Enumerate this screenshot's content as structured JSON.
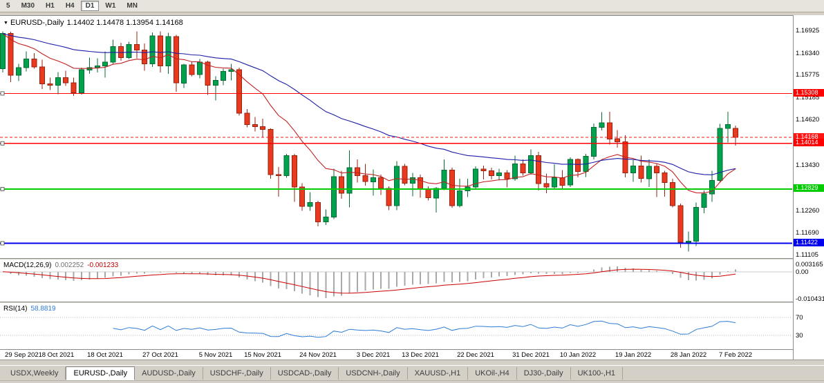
{
  "icons": {
    "chart_marker": "▼"
  },
  "toolbar": {
    "timeframes": [
      "5",
      "M30",
      "H1",
      "H4",
      "D1",
      "W1",
      "MN"
    ],
    "active": "D1"
  },
  "chart_data": {
    "type": "candlestick",
    "title": "EURUSD-,Daily",
    "symbol": "EURUSD-",
    "timeframe": "Daily",
    "ohlc_readout": "1.14402 1.14478 1.13954 1.14168",
    "price_scale": {
      "top": 1.1732,
      "bottom": 1.1102
    },
    "colors": {
      "up": {
        "fill": "#00a24d",
        "stroke": "#056b32"
      },
      "down": {
        "fill": "#e9391f",
        "stroke": "#97220f"
      },
      "ma_fast": "#c22020",
      "ma_slow": "#1c1ca8",
      "macd_hist": "#a8a8a8",
      "macd_signal": "#cc0000",
      "rsi_line": "#2c7cd6"
    },
    "candles": [
      [
        1.1595,
        1.1692,
        1.1585,
        1.1686
      ],
      [
        1.1686,
        1.1691,
        1.156,
        1.1578
      ],
      [
        1.1578,
        1.1608,
        1.1563,
        1.1598
      ],
      [
        1.1598,
        1.164,
        1.1588,
        1.162
      ],
      [
        1.162,
        1.1635,
        1.1595,
        1.16
      ],
      [
        1.16,
        1.1618,
        1.1542,
        1.1556
      ],
      [
        1.1556,
        1.1572,
        1.154,
        1.1552
      ],
      [
        1.1552,
        1.1586,
        1.1529,
        1.1572
      ],
      [
        1.1572,
        1.159,
        1.155,
        1.1558
      ],
      [
        1.1558,
        1.1572,
        1.1524,
        1.1532
      ],
      [
        1.1532,
        1.1598,
        1.1528,
        1.1592
      ],
      [
        1.1592,
        1.1624,
        1.1582,
        1.1598
      ],
      [
        1.1598,
        1.1622,
        1.1585,
        1.1602
      ],
      [
        1.1602,
        1.164,
        1.1572,
        1.1612
      ],
      [
        1.1612,
        1.167,
        1.1608,
        1.1652
      ],
      [
        1.1652,
        1.1662,
        1.1616,
        1.1624
      ],
      [
        1.1624,
        1.1665,
        1.162,
        1.1658
      ],
      [
        1.1658,
        1.1692,
        1.1622,
        1.1643
      ],
      [
        1.1643,
        1.166,
        1.159,
        1.1608
      ],
      [
        1.1608,
        1.1689,
        1.16,
        1.168
      ],
      [
        1.168,
        1.1692,
        1.1585,
        1.1602
      ],
      [
        1.1602,
        1.1688,
        1.1582,
        1.1678
      ],
      [
        1.1678,
        1.1683,
        1.1535,
        1.1558
      ],
      [
        1.1558,
        1.1608,
        1.1545,
        1.1605
      ],
      [
        1.1605,
        1.1612,
        1.1575,
        1.158
      ],
      [
        1.158,
        1.162,
        1.157,
        1.1612
      ],
      [
        1.1612,
        1.1616,
        1.1527,
        1.1552
      ],
      [
        1.1552,
        1.1575,
        1.1513,
        1.1565
      ],
      [
        1.1565,
        1.1595,
        1.1552,
        1.1588
      ],
      [
        1.1588,
        1.1608,
        1.1565,
        1.1592
      ],
      [
        1.1592,
        1.1598,
        1.1473,
        1.148
      ],
      [
        1.148,
        1.149,
        1.1443,
        1.145
      ],
      [
        1.145,
        1.147,
        1.1432,
        1.1445
      ],
      [
        1.1445,
        1.1465,
        1.1418,
        1.1438
      ],
      [
        1.1438,
        1.144,
        1.131,
        1.132
      ],
      [
        1.132,
        1.134,
        1.1263,
        1.1318
      ],
      [
        1.1318,
        1.1374,
        1.1312,
        1.137
      ],
      [
        1.137,
        1.1374,
        1.125,
        1.1288
      ],
      [
        1.1288,
        1.1298,
        1.1226,
        1.1238
      ],
      [
        1.1238,
        1.1275,
        1.1226,
        1.1248
      ],
      [
        1.1248,
        1.1252,
        1.1186,
        1.1198
      ],
      [
        1.1198,
        1.123,
        1.119,
        1.121
      ],
      [
        1.121,
        1.1336,
        1.1205,
        1.1315
      ],
      [
        1.1315,
        1.133,
        1.1258,
        1.1272
      ],
      [
        1.1272,
        1.1383,
        1.1235,
        1.1338
      ],
      [
        1.1338,
        1.136,
        1.13,
        1.1318
      ],
      [
        1.1318,
        1.1348,
        1.1292,
        1.1302
      ],
      [
        1.1302,
        1.1334,
        1.1266,
        1.1312
      ],
      [
        1.1312,
        1.132,
        1.1268,
        1.1285
      ],
      [
        1.1285,
        1.129,
        1.1228,
        1.124
      ],
      [
        1.124,
        1.1355,
        1.1228,
        1.1342
      ],
      [
        1.1342,
        1.1348,
        1.1293,
        1.1298
      ],
      [
        1.1298,
        1.1325,
        1.1264,
        1.1312
      ],
      [
        1.1312,
        1.132,
        1.126,
        1.1282
      ],
      [
        1.1282,
        1.129,
        1.1253,
        1.126
      ],
      [
        1.126,
        1.1288,
        1.1222,
        1.1285
      ],
      [
        1.1285,
        1.136,
        1.128,
        1.1332
      ],
      [
        1.1332,
        1.1338,
        1.1234,
        1.124
      ],
      [
        1.124,
        1.131,
        1.1235,
        1.1278
      ],
      [
        1.1278,
        1.131,
        1.1262,
        1.1288
      ],
      [
        1.1288,
        1.1342,
        1.1282,
        1.1335
      ],
      [
        1.1335,
        1.1344,
        1.1308,
        1.133
      ],
      [
        1.133,
        1.1338,
        1.1308,
        1.1318
      ],
      [
        1.1318,
        1.1336,
        1.1305,
        1.1325
      ],
      [
        1.1325,
        1.1332,
        1.1287,
        1.131
      ],
      [
        1.131,
        1.137,
        1.1304,
        1.1348
      ],
      [
        1.1348,
        1.136,
        1.1318,
        1.1325
      ],
      [
        1.1325,
        1.1386,
        1.132,
        1.137
      ],
      [
        1.137,
        1.1379,
        1.1279,
        1.1297
      ],
      [
        1.1297,
        1.1323,
        1.1272,
        1.1288
      ],
      [
        1.1288,
        1.1347,
        1.1284,
        1.1312
      ],
      [
        1.1312,
        1.1332,
        1.1285,
        1.1293
      ],
      [
        1.1293,
        1.1365,
        1.1288,
        1.136
      ],
      [
        1.136,
        1.1362,
        1.1313,
        1.1328
      ],
      [
        1.1328,
        1.1374,
        1.1314,
        1.1368
      ],
      [
        1.1368,
        1.1453,
        1.136,
        1.1443
      ],
      [
        1.1443,
        1.1482,
        1.1435,
        1.1455
      ],
      [
        1.1455,
        1.1483,
        1.1398,
        1.1413
      ],
      [
        1.1413,
        1.1436,
        1.139,
        1.1405
      ],
      [
        1.1405,
        1.1422,
        1.1313,
        1.1325
      ],
      [
        1.1325,
        1.1358,
        1.1302,
        1.1343
      ],
      [
        1.1343,
        1.137,
        1.13,
        1.131
      ],
      [
        1.131,
        1.136,
        1.1288,
        1.1342
      ],
      [
        1.1342,
        1.1348,
        1.1262,
        1.1325
      ],
      [
        1.1325,
        1.133,
        1.1263,
        1.13
      ],
      [
        1.13,
        1.131,
        1.1235,
        1.124
      ],
      [
        1.124,
        1.1245,
        1.1131,
        1.1145
      ],
      [
        1.1145,
        1.1173,
        1.1121,
        1.1148
      ],
      [
        1.1148,
        1.1248,
        1.1135,
        1.1235
      ],
      [
        1.1235,
        1.1279,
        1.122,
        1.127
      ],
      [
        1.127,
        1.133,
        1.125,
        1.1305
      ],
      [
        1.1305,
        1.1452,
        1.13,
        1.144
      ],
      [
        1.144,
        1.1483,
        1.1404,
        1.145
      ],
      [
        1.14402,
        1.14478,
        1.13954,
        1.14168
      ]
    ],
    "x_labels": [
      {
        "label": "29 Sep 2021",
        "index": 0
      },
      {
        "label": "8 Oct 2021",
        "index": 7
      },
      {
        "label": "18 Oct 2021",
        "index": 13
      },
      {
        "label": "27 Oct 2021",
        "index": 20
      },
      {
        "label": "5 Nov 2021",
        "index": 27
      },
      {
        "label": "15 Nov 2021",
        "index": 33
      },
      {
        "label": "24 Nov 2021",
        "index": 40
      },
      {
        "label": "3 Dec 2021",
        "index": 47
      },
      {
        "label": "13 Dec 2021",
        "index": 53
      },
      {
        "label": "22 Dec 2021",
        "index": 60
      },
      {
        "label": "31 Dec 2021",
        "index": 67
      },
      {
        "label": "10 Jan 2022",
        "index": 73
      },
      {
        "label": "19 Jan 2022",
        "index": 80
      },
      {
        "label": "28 Jan 2022",
        "index": 87
      },
      {
        "label": "7 Feb 2022",
        "index": 93
      }
    ],
    "y_axis_labels": [
      "1.16925",
      "1.16340",
      "1.15775",
      "1.15185",
      "1.14620",
      "1.13430",
      "1.12260",
      "1.11690",
      "1.11105"
    ],
    "levels": [
      {
        "value": 1.15308,
        "label": "1.15308",
        "color": "#ff0000",
        "width": 1.2,
        "style": "solid",
        "badge": true,
        "handle": true,
        "role": "resistance"
      },
      {
        "value": 1.14168,
        "label": "1.14168",
        "color": "#ff1414",
        "width": 1,
        "style": "dashed",
        "badge": true,
        "handle": false,
        "role": "last-price"
      },
      {
        "value": 1.14014,
        "label": "1.14014",
        "color": "#ff0000",
        "width": 1.2,
        "style": "solid",
        "badge": true,
        "handle": true,
        "role": "resistance"
      },
      {
        "value": 1.12829,
        "label": "1.12829",
        "color": "#00cc00",
        "width": 2,
        "style": "solid",
        "badge": true,
        "handle": true,
        "role": "support"
      },
      {
        "value": 1.11422,
        "label": "1.11422",
        "color": "#0000ee",
        "width": 2,
        "style": "solid",
        "badge": true,
        "handle": true,
        "role": "support"
      }
    ],
    "ma_lines": [
      {
        "name": "ma-fast",
        "period": 13,
        "color": "#c22020"
      },
      {
        "name": "ma-slow",
        "period": 40,
        "color": "#1c1ca8"
      }
    ],
    "macd": {
      "label": "MACD(12,26,9)",
      "value_main": "0.002252",
      "value_signal": "-0.001233",
      "fast": 12,
      "slow": 26,
      "signal": 9,
      "scale": {
        "max": 0.0045,
        "min": -0.0116
      },
      "axis": [
        {
          "label": "0.003165",
          "value": 0.003165
        },
        {
          "label": "0.00",
          "value": 0
        },
        {
          "label": "-0.010431",
          "value": -0.010431
        }
      ]
    },
    "rsi": {
      "label": "RSI(14)",
      "value": "58.8819",
      "period": 14,
      "levels": [
        70,
        30
      ],
      "scale": {
        "max": 100,
        "min": 0
      },
      "axis": [
        {
          "label": "70",
          "value": 70
        },
        {
          "label": "30",
          "value": 30
        }
      ]
    }
  },
  "tabs": {
    "items": [
      {
        "label": "USDX,Weekly",
        "active": false
      },
      {
        "label": "EURUSD-,Daily",
        "active": true
      },
      {
        "label": "AUDUSD-,Daily",
        "active": false
      },
      {
        "label": "USDCHF-,Daily",
        "active": false
      },
      {
        "label": "USDCAD-,Daily",
        "active": false
      },
      {
        "label": "USDCNH-,Daily",
        "active": false
      },
      {
        "label": "XAUUSD-,H1",
        "active": false
      },
      {
        "label": "UKOil-,H4",
        "active": false
      },
      {
        "label": "DJ30-,Daily",
        "active": false
      },
      {
        "label": "UK100-,H1",
        "active": false
      }
    ]
  }
}
